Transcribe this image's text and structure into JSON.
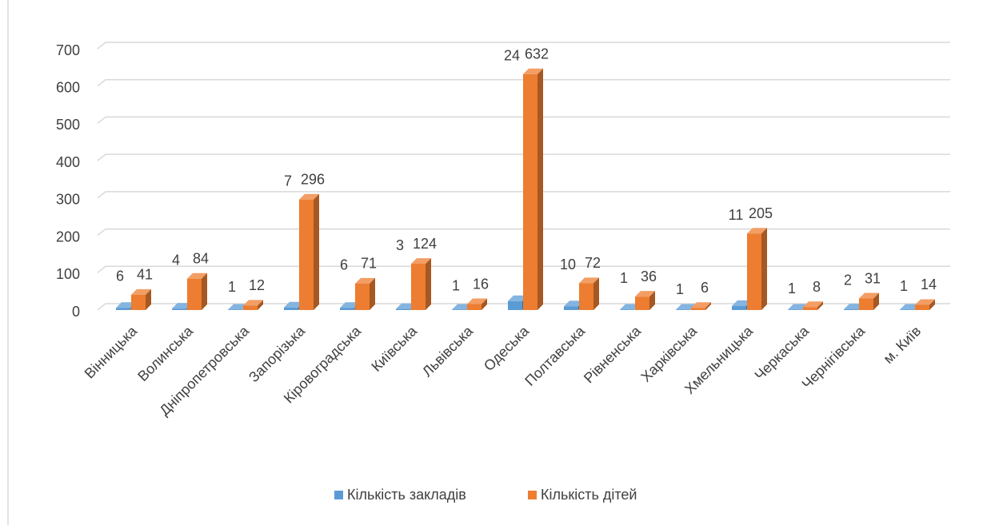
{
  "chart_data": {
    "type": "bar3d",
    "categories": [
      "Вінницька",
      "Волинська",
      "Дніпропетровська",
      "Запорізька",
      "Кіровоградська",
      "Київська",
      "Львівська",
      "Одеська",
      "Полтавська",
      "Рівненська",
      "Харківська",
      "Хмельницька",
      "Черкаська",
      "Чернігівська",
      "м. Київ"
    ],
    "series": [
      {
        "name": "Кількість закладів",
        "color": "#5b9bd5",
        "values": [
          6,
          4,
          1,
          7,
          6,
          3,
          1,
          24,
          10,
          1,
          1,
          11,
          1,
          2,
          1
        ]
      },
      {
        "name": "Кількість дітей",
        "color": "#ed7d31",
        "values": [
          41,
          84,
          12,
          296,
          71,
          124,
          16,
          632,
          72,
          36,
          6,
          205,
          8,
          31,
          14
        ]
      }
    ],
    "ylim": [
      0,
      700
    ],
    "yticks": [
      0,
      100,
      200,
      300,
      400,
      500,
      600,
      700
    ],
    "grid": true,
    "legend": "bottom"
  }
}
